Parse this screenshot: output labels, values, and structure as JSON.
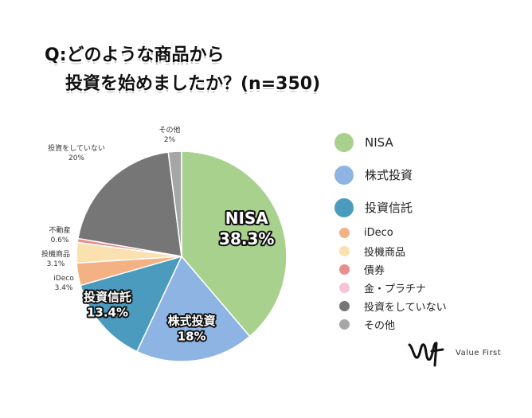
{
  "title": {
    "line1": "Q:どのような商品から",
    "line2": "投資を始めましたか？(n=350)"
  },
  "chart_data": {
    "type": "pie",
    "slices": [
      {
        "name": "NISA",
        "value": 38.3,
        "label_value": "38.3%",
        "color": "#a9d18e"
      },
      {
        "name": "株式投資",
        "value": 18,
        "label_value": "18%",
        "color": "#8eb4e3"
      },
      {
        "name": "投資信託",
        "value": 13.4,
        "label_value": "13.4%",
        "color": "#4a9bbd"
      },
      {
        "name": "iDeco",
        "value": 3.4,
        "label_value": "3.4%",
        "color": "#f4b183"
      },
      {
        "name": "投機商品",
        "value": 3.1,
        "label_value": "3.1%",
        "color": "#fbe0b0"
      },
      {
        "name": "債券",
        "value": 0.0,
        "label_value": "",
        "color": "#e88e8e"
      },
      {
        "name": "金・プラチナ",
        "value": 0.0,
        "label_value": "",
        "color": "#f8c3d6"
      },
      {
        "name": "不動産",
        "value": 0.6,
        "label_value": "0.6%",
        "color": "#e88e8e"
      },
      {
        "name": "投資をしていない",
        "value": 20,
        "label_value": "20%",
        "color": "#767676"
      },
      {
        "name": "その他",
        "value": 2,
        "label_value": "2%",
        "color": "#a6a6a6"
      }
    ],
    "legend": [
      {
        "name": "NISA",
        "color": "#a9d18e",
        "size": "big"
      },
      {
        "name": "株式投資",
        "color": "#8eb4e3",
        "size": "big"
      },
      {
        "name": "投資信託",
        "color": "#4a9bbd",
        "size": "big"
      },
      {
        "name": "iDeco",
        "color": "#f4b183",
        "size": "small"
      },
      {
        "name": "投機商品",
        "color": "#fbe0b0",
        "size": "small"
      },
      {
        "name": "債券",
        "color": "#e88e8e",
        "size": "small"
      },
      {
        "name": "金・プラチナ",
        "color": "#f8c3d6",
        "size": "small"
      },
      {
        "name": "投資をしていない",
        "color": "#767676",
        "size": "small"
      },
      {
        "name": "その他",
        "color": "#a6a6a6",
        "size": "small"
      }
    ],
    "legend_placement": "right"
  },
  "logo": {
    "text": "Value First"
  }
}
